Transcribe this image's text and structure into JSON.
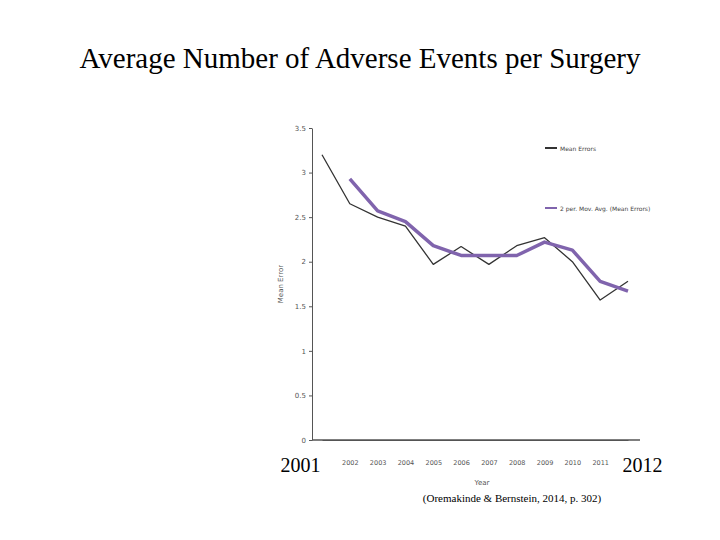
{
  "chart_data": {
    "type": "line",
    "title": "Average Number of Adverse Events per Surgery",
    "x_label": "Year",
    "y_label": "Mean Error",
    "source": "(Oremakinde & Bernstein, 2014, p. 302)",
    "categories": [
      "2001",
      "2002",
      "2003",
      "2004",
      "2005",
      "2006",
      "2007",
      "2008",
      "2009",
      "2010",
      "2011",
      "2012"
    ],
    "series": [
      {
        "name": "Mean Errors",
        "color": "#333333",
        "values": [
          3.2,
          2.65,
          2.5,
          2.4,
          1.97,
          2.17,
          1.97,
          2.18,
          2.27,
          2.0,
          1.57,
          1.78
        ]
      },
      {
        "name": "2 per. Mov. Avg. (Mean Errors)",
        "color": "#8064ad",
        "values": [
          null,
          2.93,
          2.57,
          2.45,
          2.18,
          2.07,
          2.07,
          2.07,
          2.22,
          2.13,
          1.78,
          1.67
        ]
      }
    ],
    "ylim": [
      0,
      3.5
    ],
    "yticks": [
      0,
      0.5,
      1,
      1.5,
      2,
      2.5,
      3,
      3.5
    ],
    "legend": "upper right"
  }
}
